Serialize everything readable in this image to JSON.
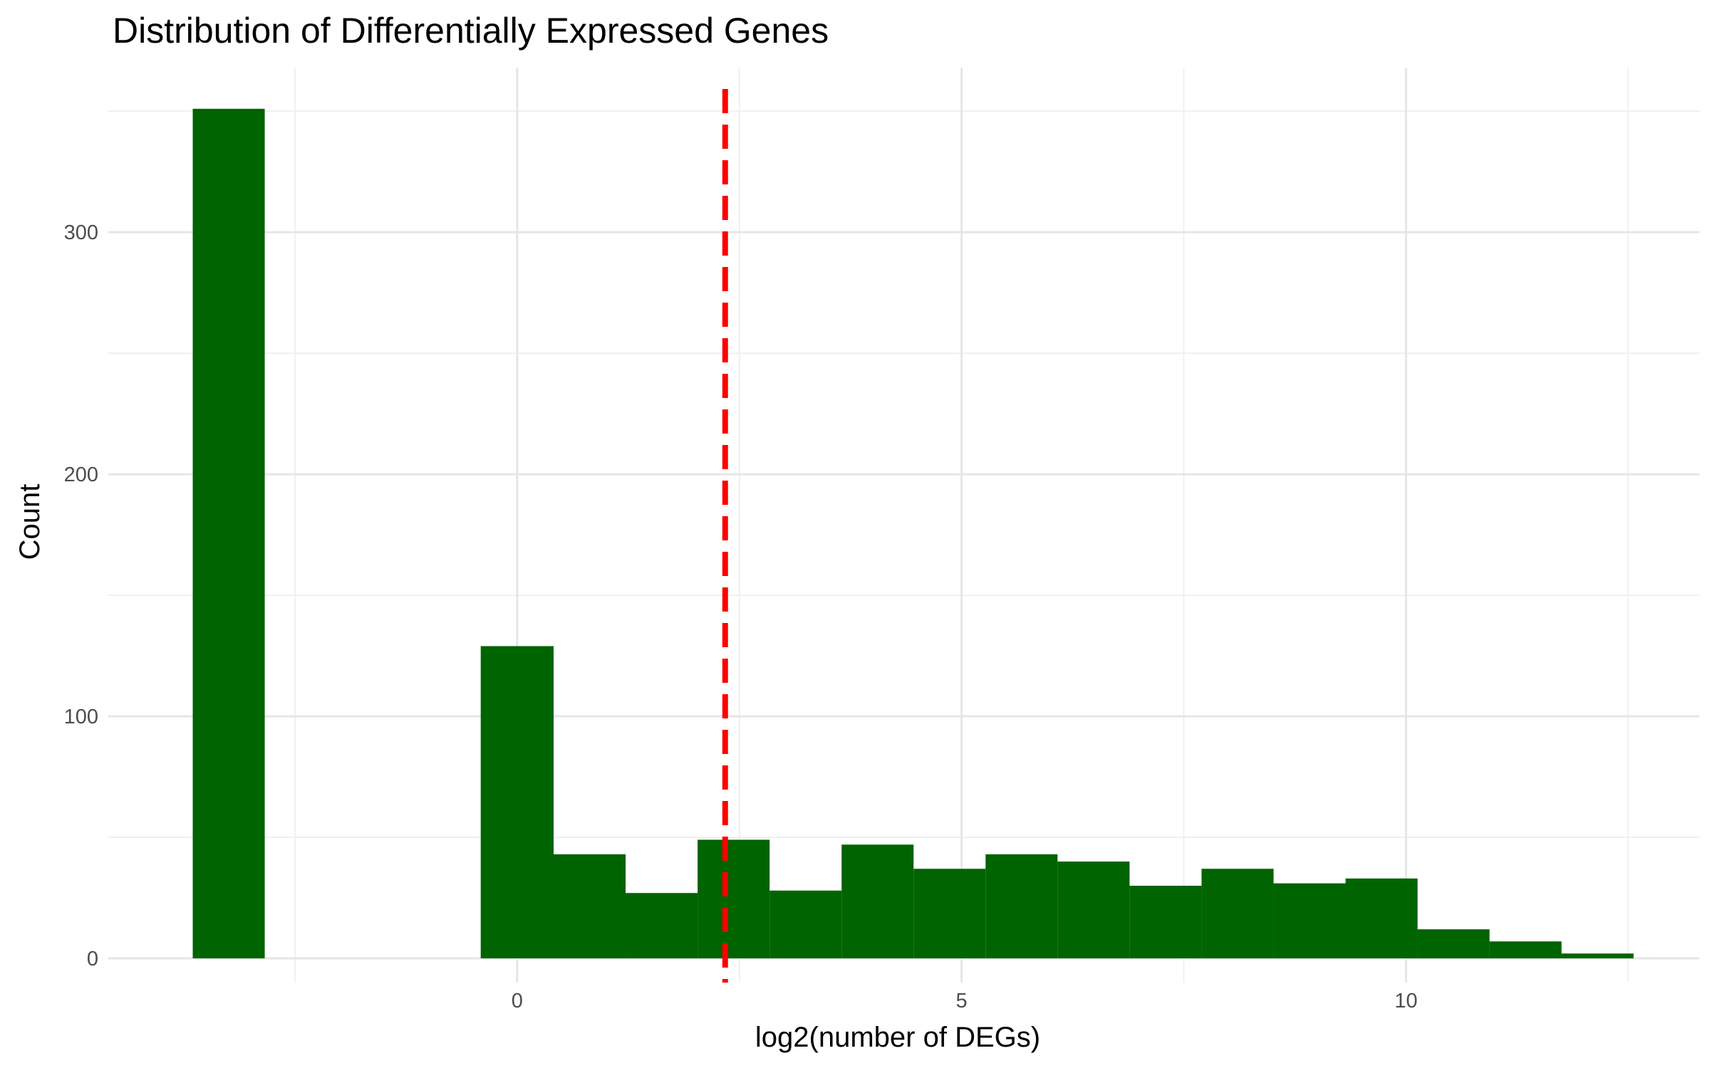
{
  "chart_data": {
    "type": "bar",
    "title": "Distribution of Differentially Expressed Genes",
    "xlabel": "log2(number of DEGs)",
    "ylabel": "Count",
    "xlim": [
      -4.6,
      13.3
    ],
    "ylim": [
      -10,
      368
    ],
    "x_ticks": [
      0,
      5,
      10
    ],
    "y_ticks": [
      0,
      100,
      200,
      300
    ],
    "x_tick_labels": [
      "0",
      "5",
      "10"
    ],
    "y_tick_labels": [
      "0",
      "100",
      "200",
      "300"
    ],
    "x_minor_ticks": [
      -2.5,
      2.5,
      7.5,
      12.5
    ],
    "y_minor_ticks": [
      50,
      150,
      250,
      350
    ],
    "grid": true,
    "bins": [
      {
        "x0": -3.65,
        "x1": -2.84,
        "count": 351
      },
      {
        "x0": -0.41,
        "x1": 0.41,
        "count": 129
      },
      {
        "x0": 0.41,
        "x1": 1.22,
        "count": 43
      },
      {
        "x0": 1.22,
        "x1": 2.03,
        "count": 27
      },
      {
        "x0": 2.03,
        "x1": 2.84,
        "count": 49
      },
      {
        "x0": 2.84,
        "x1": 3.65,
        "count": 28
      },
      {
        "x0": 3.65,
        "x1": 4.46,
        "count": 47
      },
      {
        "x0": 4.46,
        "x1": 5.27,
        "count": 37
      },
      {
        "x0": 5.27,
        "x1": 6.08,
        "count": 43
      },
      {
        "x0": 6.08,
        "x1": 6.89,
        "count": 40
      },
      {
        "x0": 6.89,
        "x1": 7.7,
        "count": 30
      },
      {
        "x0": 7.7,
        "x1": 8.51,
        "count": 37
      },
      {
        "x0": 8.51,
        "x1": 9.32,
        "count": 31
      },
      {
        "x0": 9.32,
        "x1": 10.13,
        "count": 33
      },
      {
        "x0": 10.13,
        "x1": 10.94,
        "count": 12
      },
      {
        "x0": 10.94,
        "x1": 11.75,
        "count": 7
      },
      {
        "x0": 11.75,
        "x1": 12.56,
        "count": 2
      }
    ],
    "reference_line": {
      "x": 2.34,
      "color": "#ff0000",
      "style": "dashed"
    },
    "bar_color": "#006400"
  }
}
